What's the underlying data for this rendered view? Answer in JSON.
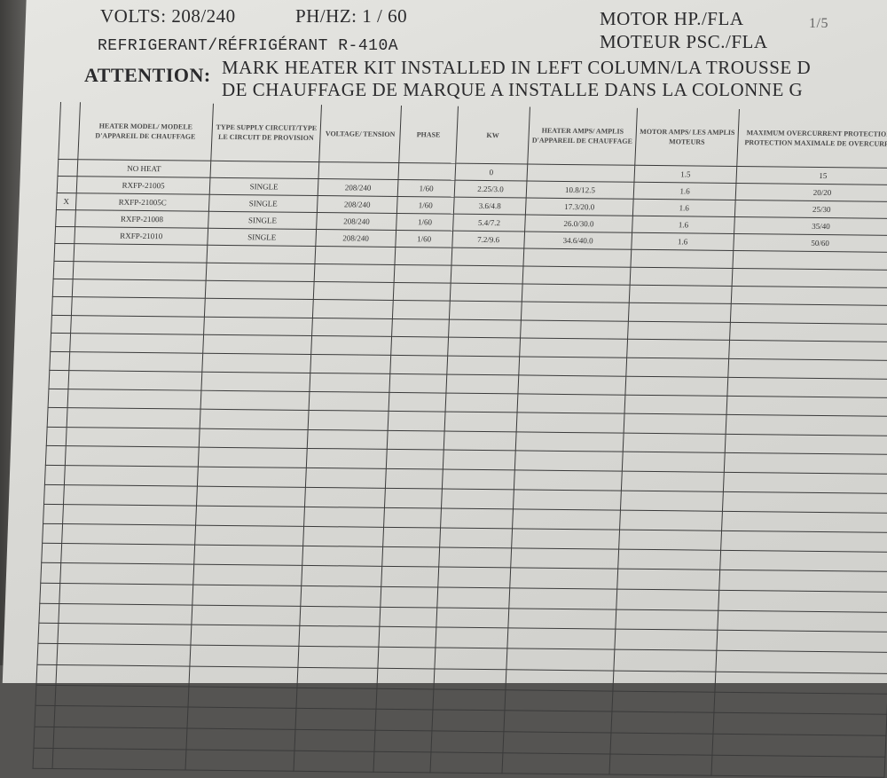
{
  "header": {
    "volts": "VOLTS: 208/240",
    "ph_hz": "PH/HZ:  1  /  60",
    "refrigerant": "REFRIGERANT/RÉFRIGÉRANT  R-410A",
    "motor_hp": "MOTOR HP./FLA",
    "motor_hp_value": "1/5",
    "moteur": "MOTEUR PSC./FLA",
    "attention_label": "ATTENTION:",
    "attention_line1": "MARK HEATER KIT INSTALLED IN LEFT COLUMN/LA TROUSSE D",
    "attention_line2": "DE CHAUFFAGE DE MARQUE A INSTALLE DANS LA COLONNE G"
  },
  "table": {
    "columns": [
      "",
      "HEATER MODEL/ MODELE D'APPAREIL DE CHAUFFAGE",
      "TYPE SUPPLY CIRCUIT/TYPE LE CIRCUIT DE PROVISION",
      "VOLTAGE/ TENSION",
      "PHASE",
      "KW",
      "HEATER AMPS/ AMPLIS D'APPAREIL DE CHAUFFAGE",
      "MOTOR AMPS/ LES AMPLIS MOTEURS",
      "MAXIMUM OVERCURRENT PROTECTION LA PROTECTION MAXIMALE DE OVERCURRENT"
    ],
    "rows": [
      [
        "",
        "NO HEAT",
        "",
        "",
        "",
        "0",
        "",
        "1.5",
        "15"
      ],
      [
        "",
        "RXFP-21005",
        "SINGLE",
        "208/240",
        "1/60",
        "2.25/3.0",
        "10.8/12.5",
        "1.6",
        "20/20"
      ],
      [
        "X",
        "RXFP-21005C",
        "SINGLE",
        "208/240",
        "1/60",
        "3.6/4.8",
        "17.3/20.0",
        "1.6",
        "25/30"
      ],
      [
        "",
        "RXFP-21008",
        "SINGLE",
        "208/240",
        "1/60",
        "5.4/7.2",
        "26.0/30.0",
        "1.6",
        "35/40"
      ],
      [
        "",
        "RXFP-21010",
        "SINGLE",
        "208/240",
        "1/60",
        "7.2/9.6",
        "34.6/40.0",
        "1.6",
        "50/60"
      ]
    ]
  }
}
